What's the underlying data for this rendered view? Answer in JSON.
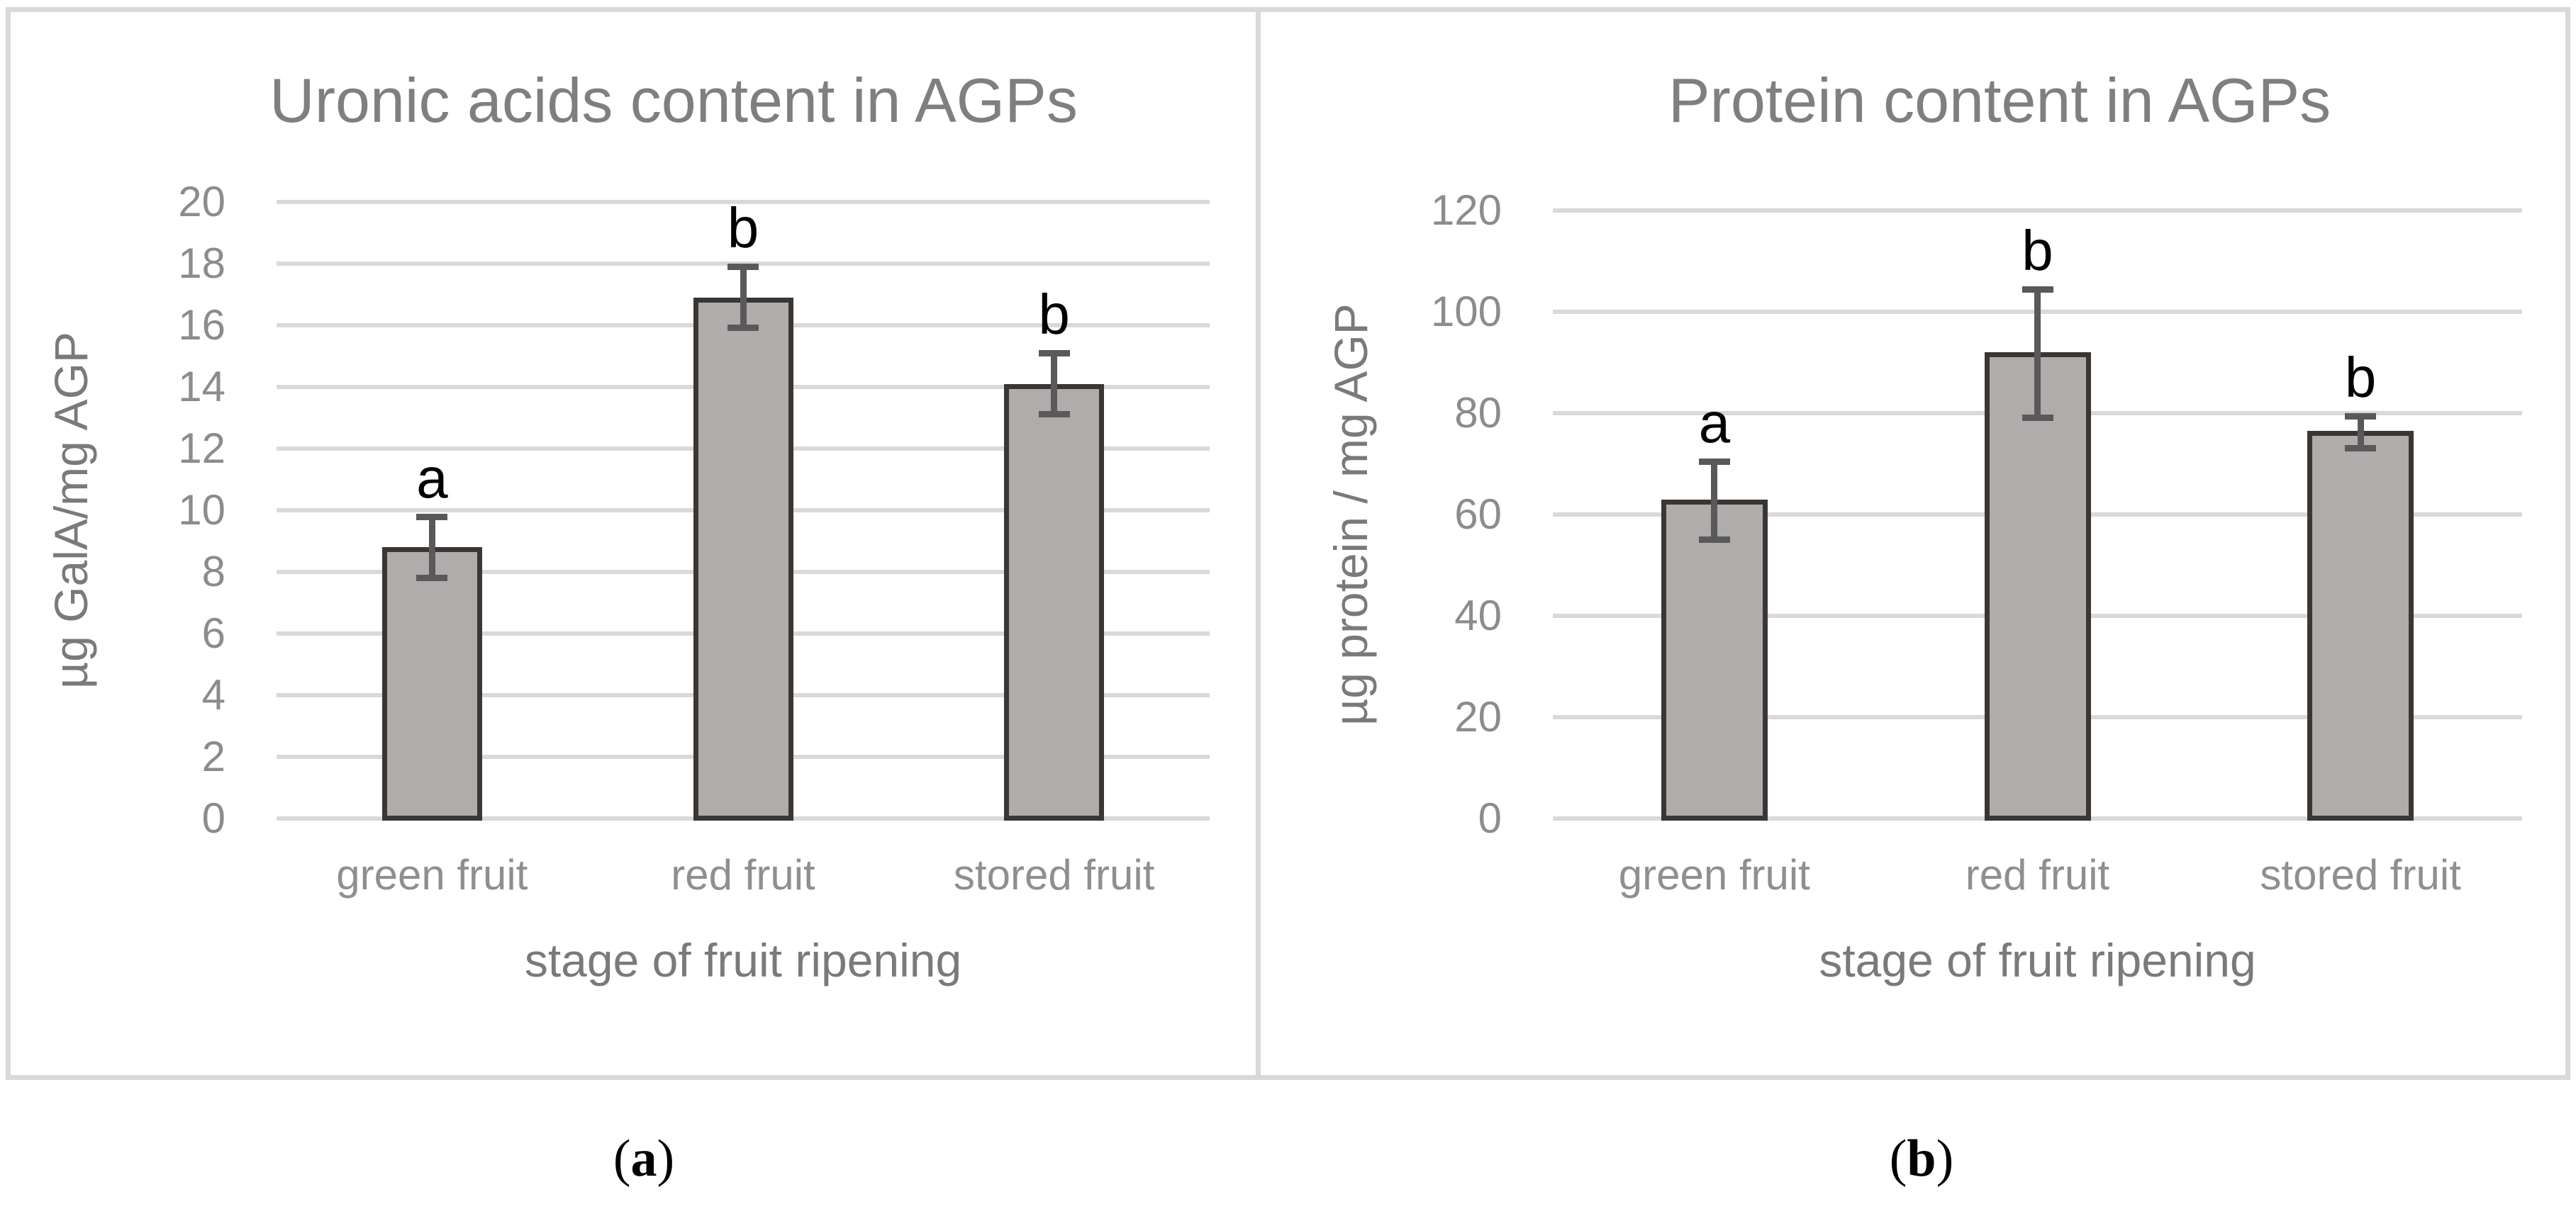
{
  "figure": {
    "background": "#ffffff",
    "panel_border_color": "#d9d9d9"
  },
  "colors": {
    "bar_fill": "#b0acab",
    "bar_border": "#3a3634",
    "error_bar": "#595959",
    "gridline": "#d9d9d9",
    "title_text": "#7f7f7f",
    "tick_text": "#8c8c8c",
    "category_text": "#8f8f8f",
    "axis_title_text": "#7a7a7a",
    "letter_text": "#000000"
  },
  "captions": [
    {
      "prefix": "(",
      "label": "a",
      "suffix": ")"
    },
    {
      "prefix": "(",
      "label": "b",
      "suffix": ")"
    }
  ],
  "chart_data": [
    {
      "type": "bar",
      "title": "Uronic acids content in AGPs",
      "categories": [
        "green fruit",
        "red fruit",
        "stored fruit"
      ],
      "values": [
        8.8,
        16.9,
        14.1
      ],
      "error_low": [
        7.8,
        15.9,
        13.1
      ],
      "error_high": [
        9.8,
        17.9,
        15.1
      ],
      "sig_letters": [
        "a",
        "b",
        "b"
      ],
      "xlabel": "stage of fruit ripening",
      "ylabel": "µg GalA/mg AGP",
      "ylim": [
        0,
        20
      ],
      "ytick_step": 2,
      "grid": true,
      "legend": false
    },
    {
      "type": "bar",
      "title": "Protein content in AGPs",
      "categories": [
        "green fruit",
        "red fruit",
        "stored fruit"
      ],
      "values": [
        63,
        92,
        76.5
      ],
      "error_low": [
        55,
        79,
        73
      ],
      "error_high": [
        70.5,
        104.5,
        79.5
      ],
      "sig_letters": [
        "a",
        "b",
        "b"
      ],
      "xlabel": "stage of fruit ripening",
      "ylabel": "µg protein / mg AGP",
      "ylim": [
        0,
        120
      ],
      "ytick_step": 20,
      "grid": true,
      "legend": false
    }
  ]
}
